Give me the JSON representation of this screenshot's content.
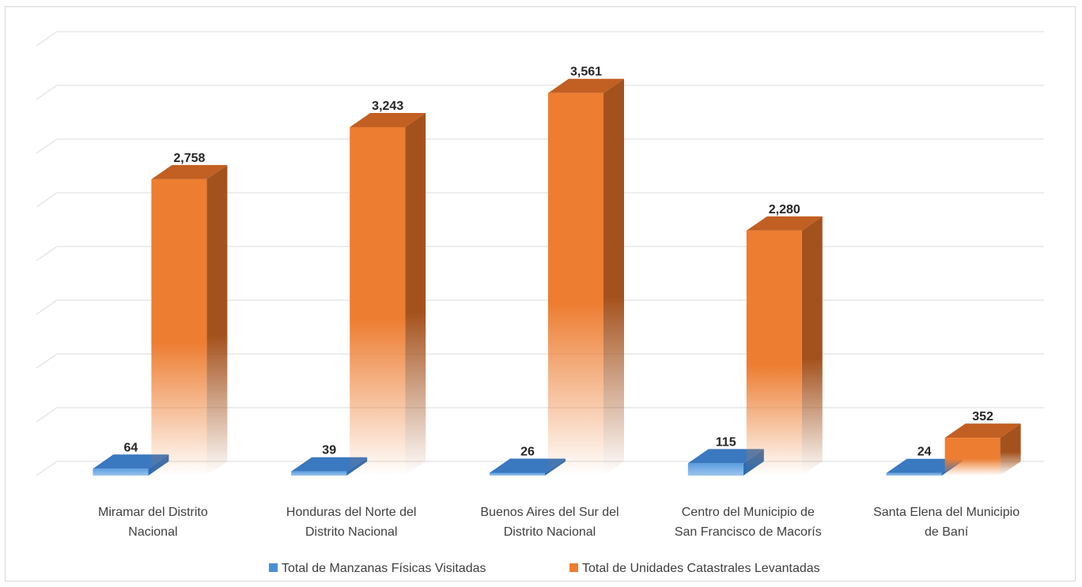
{
  "chart_data": {
    "type": "bar",
    "title": "",
    "xlabel": "",
    "ylabel": "",
    "categories": [
      [
        "Miramar del Distrito",
        "Nacional"
      ],
      [
        "Honduras del Norte del",
        "Distrito Nacional"
      ],
      [
        "Buenos Aires del Sur del",
        "Distrito Nacional"
      ],
      [
        "Centro del Municipio de",
        "San Francisco de Macorís"
      ],
      [
        "Santa Elena del Municipio",
        "de Baní"
      ]
    ],
    "series": [
      {
        "name": "Total de Manzanas Físicas Visitadas",
        "values": [
          64,
          39,
          26,
          115,
          24
        ],
        "labels": [
          "64",
          "39",
          "26",
          "115",
          "24"
        ],
        "color": "#4a8fd6",
        "side_color": "#2f6db0",
        "top_color": "#3a78bf"
      },
      {
        "name": "Total de Unidades Catastrales Levantadas",
        "values": [
          2758,
          3243,
          3561,
          2280,
          352
        ],
        "labels": [
          "2,758",
          "3,243",
          "3,561",
          "2,280",
          "352"
        ],
        "color": "#ed7d31",
        "side_color": "#a4521d",
        "top_color": "#c25f22"
      }
    ],
    "ylim": [
      0,
      4000
    ],
    "grid": true,
    "legend_position": "bottom",
    "style": "3d-column"
  }
}
